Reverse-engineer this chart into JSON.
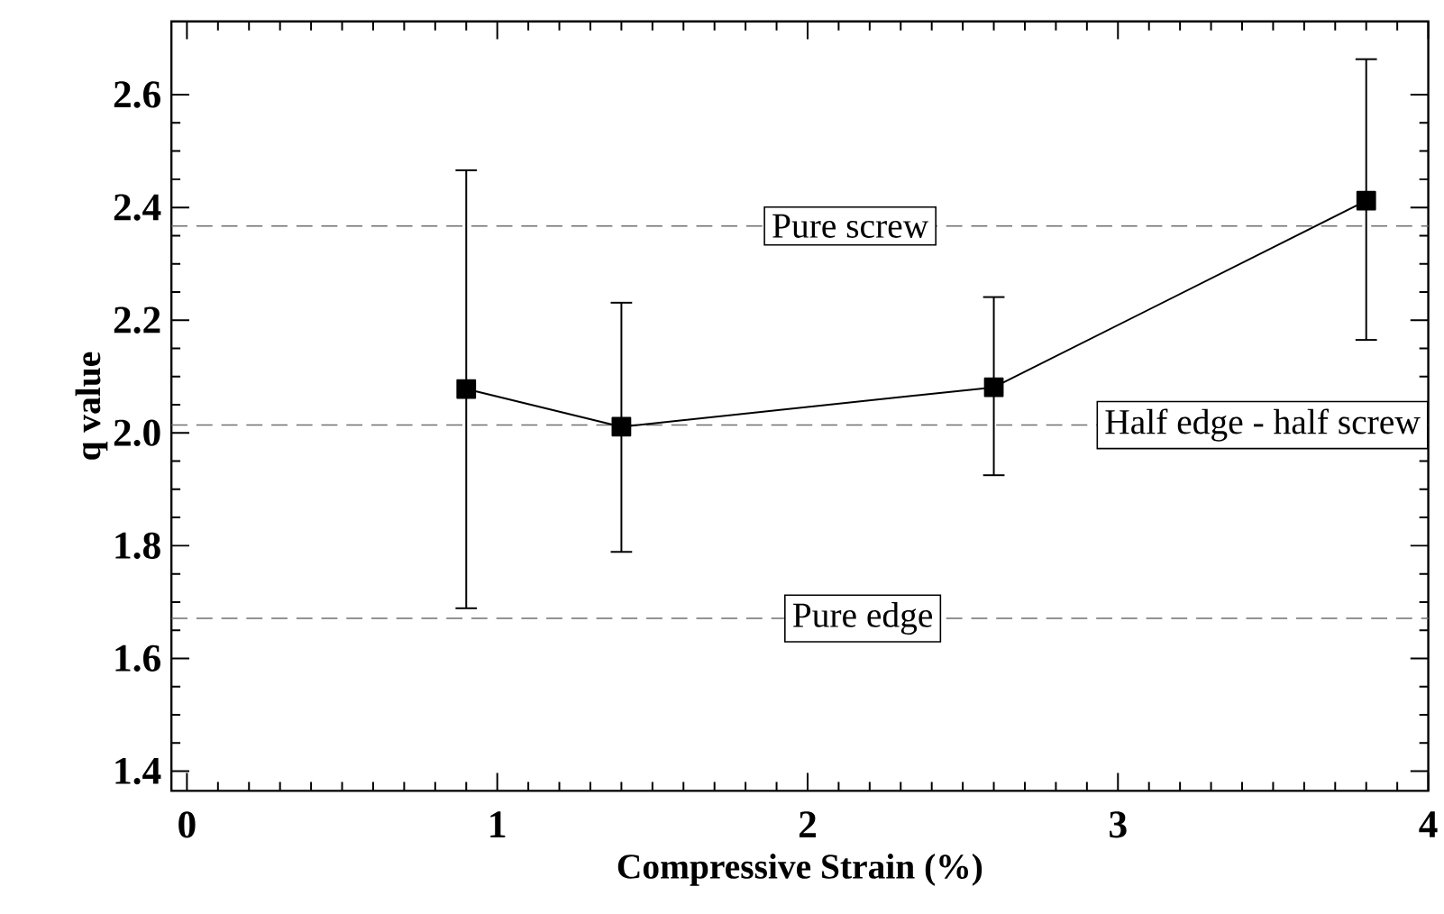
{
  "chart_data": {
    "type": "line",
    "xlabel": "Compressive Strain (%)",
    "ylabel": "q value",
    "x": [
      0.9,
      1.4,
      2.6,
      3.8
    ],
    "series": [
      {
        "color": "#000000",
        "values": [
          2.078,
          2.011,
          2.081,
          2.412
        ],
        "errors": [
          [
            1.689,
            2.466
          ],
          [
            1.789,
            2.231
          ],
          [
            1.925,
            2.241
          ],
          [
            2.165,
            2.663
          ]
        ]
      }
    ],
    "xlim": [
      -0.05,
      4
    ],
    "ylim": [
      1.365,
      2.73
    ],
    "xticks": [
      0,
      1,
      2,
      3,
      4
    ],
    "yticks": [
      1.4,
      1.6,
      1.8,
      {
        "value": 2,
        "label": "2.0"
      },
      2.2,
      2.4,
      2.6
    ],
    "ref_lines": [
      {
        "axis": "y",
        "value": 2.367,
        "label": "Pure screw",
        "color": "#707070",
        "line_style": "dashed"
      },
      {
        "axis": "y",
        "value": 2.014,
        "label": "Half edge - half screw",
        "color": "#707070",
        "line_style": "dashed"
      },
      {
        "axis": "y",
        "value": 1.671,
        "label": "Pure edge",
        "color": "#707070",
        "line_style": "dashed"
      }
    ],
    "grid": false,
    "marker": "square",
    "line_style": "solid"
  }
}
